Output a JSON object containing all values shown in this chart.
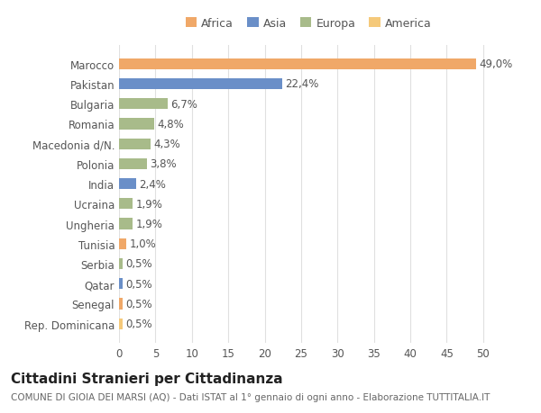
{
  "categories": [
    "Rep. Dominicana",
    "Senegal",
    "Qatar",
    "Serbia",
    "Tunisia",
    "Ungheria",
    "Ucraina",
    "India",
    "Polonia",
    "Macedonia d/N.",
    "Romania",
    "Bulgaria",
    "Pakistan",
    "Marocco"
  ],
  "values": [
    0.5,
    0.5,
    0.5,
    0.5,
    1.0,
    1.9,
    1.9,
    2.4,
    3.8,
    4.3,
    4.8,
    6.7,
    22.4,
    49.0
  ],
  "labels": [
    "0,5%",
    "0,5%",
    "0,5%",
    "0,5%",
    "1,0%",
    "1,9%",
    "1,9%",
    "2,4%",
    "3,8%",
    "4,3%",
    "4,8%",
    "6,7%",
    "22,4%",
    "49,0%"
  ],
  "colors": [
    "#f5c97a",
    "#f0a868",
    "#6a8fc8",
    "#a8bb8a",
    "#f0a868",
    "#a8bb8a",
    "#a8bb8a",
    "#6a8fc8",
    "#a8bb8a",
    "#a8bb8a",
    "#a8bb8a",
    "#a8bb8a",
    "#6a8fc8",
    "#f0a868"
  ],
  "legend": [
    {
      "label": "Africa",
      "color": "#f0a868"
    },
    {
      "label": "Asia",
      "color": "#6a8fc8"
    },
    {
      "label": "Europa",
      "color": "#a8bb8a"
    },
    {
      "label": "America",
      "color": "#f5c97a"
    }
  ],
  "xlim": [
    0,
    52
  ],
  "xticks": [
    0,
    5,
    10,
    15,
    20,
    25,
    30,
    35,
    40,
    45,
    50
  ],
  "title": "Cittadini Stranieri per Cittadinanza",
  "subtitle": "COMUNE DI GIOIA DEI MARSI (AQ) - Dati ISTAT al 1° gennaio di ogni anno - Elaborazione TUTTITALIA.IT",
  "bg_color": "#ffffff",
  "grid_color": "#e0e0e0",
  "bar_height": 0.55,
  "label_fontsize": 8.5,
  "tick_fontsize": 8.5,
  "title_fontsize": 11,
  "subtitle_fontsize": 7.5
}
